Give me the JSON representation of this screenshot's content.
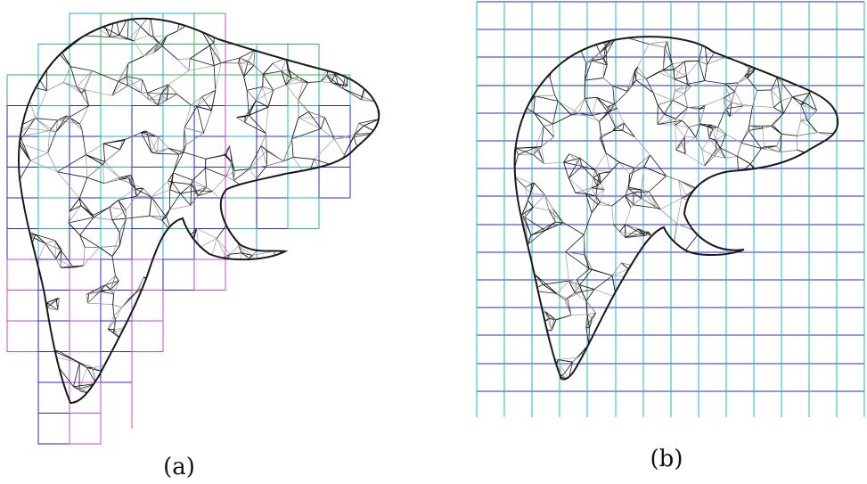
{
  "figure": {
    "panels": [
      {
        "id": "a",
        "label": "(a)",
        "grid_style": "adaptive-block-grid"
      },
      {
        "id": "b",
        "label": "(b)",
        "grid_style": "uniform-grid"
      }
    ],
    "colors": {
      "mesh_dark": "#1a1a1a",
      "mesh_light": "#9a9a9a",
      "grid_blue": "#2b2bd0",
      "grid_cyan": "#22b8c8",
      "grid_green": "#3cb04a",
      "grid_magenta": "#c84bc8"
    }
  }
}
